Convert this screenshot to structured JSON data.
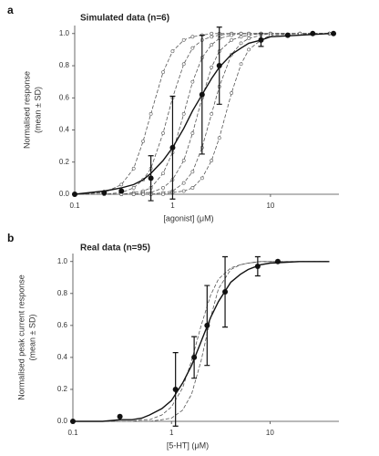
{
  "chart_data": [
    {
      "type": "line",
      "panel": "a",
      "title": "Simulated data (n=6)",
      "x_label": "[agonist] (μM)",
      "y_label": [
        "Normalised response",
        "(mean ± SD)"
      ],
      "xscale": "log",
      "xlim": [
        0.1,
        50
      ],
      "xticks": [
        0.1,
        1,
        10
      ],
      "ylim": [
        0,
        1.05
      ],
      "yticks": [
        {
          "value": 0,
          "label": "0.0"
        },
        0.2,
        0.4,
        0.6,
        0.8,
        {
          "value": 1,
          "label": "1.0"
        }
      ],
      "x": [
        0.1,
        0.2,
        0.3,
        0.4,
        0.5,
        0.6,
        0.8,
        1,
        1.3,
        1.6,
        2,
        2.5,
        3,
        4,
        5,
        6,
        8,
        10,
        20,
        40
      ],
      "series": [
        {
          "color": "#555555",
          "dashed": true,
          "markers": true,
          "values": [
            0,
            0.01,
            0.06,
            0.16,
            0.33,
            0.5,
            0.76,
            0.89,
            0.96,
            0.98,
            0.99,
            1,
            1,
            1,
            1,
            1,
            1,
            1,
            1,
            1
          ]
        },
        {
          "color": "#555555",
          "dashed": true,
          "markers": true,
          "values": [
            0,
            0,
            0.01,
            0.04,
            0.09,
            0.16,
            0.38,
            0.6,
            0.81,
            0.91,
            0.96,
            0.98,
            0.99,
            1,
            1,
            1,
            1,
            1,
            1,
            1
          ]
        },
        {
          "color": "#555555",
          "dashed": true,
          "markers": true,
          "values": [
            0,
            0,
            0,
            0.01,
            0.02,
            0.04,
            0.13,
            0.26,
            0.5,
            0.7,
            0.85,
            0.93,
            0.97,
            0.99,
            1,
            1,
            1,
            1,
            1,
            1
          ]
        },
        {
          "color": "#555555",
          "dashed": true,
          "markers": true,
          "values": [
            0,
            0,
            0,
            0,
            0.01,
            0.01,
            0.04,
            0.09,
            0.21,
            0.38,
            0.6,
            0.79,
            0.89,
            0.96,
            0.98,
            0.99,
            1,
            1,
            1,
            1
          ]
        },
        {
          "color": "#555555",
          "dashed": true,
          "markers": true,
          "values": [
            0,
            0,
            0,
            0,
            0,
            0,
            0.01,
            0.02,
            0.07,
            0.14,
            0.29,
            0.5,
            0.67,
            0.87,
            0.94,
            0.97,
            0.99,
            1,
            1,
            1
          ]
        },
        {
          "color": "#555555",
          "dashed": true,
          "markers": true,
          "values": [
            0,
            0,
            0,
            0,
            0,
            0,
            0,
            0.01,
            0.02,
            0.04,
            0.1,
            0.21,
            0.35,
            0.63,
            0.81,
            0.9,
            0.96,
            0.99,
            1,
            1
          ]
        },
        {
          "color": "#111111",
          "dashed": false,
          "markers": false,
          "values": [
            0,
            0.02,
            0.04,
            0.06,
            0.09,
            0.13,
            0.21,
            0.29,
            0.41,
            0.52,
            0.62,
            0.72,
            0.79,
            0.87,
            0.91,
            0.94,
            0.96,
            0.98,
            0.99,
            1
          ]
        }
      ],
      "points": {
        "color": "#111111",
        "x": [
          0.1,
          0.2,
          0.3,
          0.6,
          1,
          2,
          3,
          8,
          15,
          27,
          44
        ],
        "values": [
          0,
          0.01,
          0.02,
          0.1,
          0.29,
          0.62,
          0.8,
          0.96,
          0.99,
          1,
          1
        ],
        "errors": [
          null,
          null,
          null,
          0.14,
          0.32,
          0.37,
          0.24,
          0.04,
          null,
          null,
          null
        ]
      }
    },
    {
      "type": "line",
      "panel": "b",
      "title": "Real data (n=95)",
      "x_label": "[5-HT] (μM)",
      "y_label": [
        "Normalised peak current response",
        "(mean ± SD)"
      ],
      "xscale": "log",
      "xlim": [
        0.1,
        50
      ],
      "xticks": [
        0.1,
        1,
        10
      ],
      "ylim": [
        0,
        1.05
      ],
      "yticks": [
        {
          "value": 0,
          "label": "0.0"
        },
        0.2,
        0.4,
        0.6,
        0.8,
        {
          "value": 1,
          "label": "1.0"
        }
      ],
      "x": [
        0.1,
        0.2,
        0.3,
        0.4,
        0.5,
        0.6,
        0.8,
        1,
        1.3,
        1.6,
        2,
        2.5,
        3,
        4,
        5,
        6,
        8,
        10,
        20,
        40
      ],
      "series": [
        {
          "color": "#555555",
          "dashed": true,
          "markers": false,
          "values": [
            0,
            0,
            0,
            0,
            0.01,
            0.01,
            0.04,
            0.09,
            0.21,
            0.38,
            0.6,
            0.79,
            0.89,
            0.96,
            0.98,
            0.99,
            1,
            1,
            1,
            1
          ]
        },
        {
          "color": "#555555",
          "dashed": true,
          "markers": false,
          "values": [
            0,
            0,
            0,
            0,
            0,
            0,
            0.01,
            0.02,
            0.07,
            0.17,
            0.38,
            0.65,
            0.83,
            0.95,
            0.98,
            0.99,
            1,
            1,
            1,
            1
          ]
        },
        {
          "color": "#111111",
          "dashed": false,
          "markers": false,
          "values": [
            0,
            0,
            0.01,
            0.01,
            0.02,
            0.04,
            0.08,
            0.13,
            0.24,
            0.35,
            0.5,
            0.65,
            0.75,
            0.87,
            0.92,
            0.95,
            0.98,
            0.99,
            1,
            1
          ]
        }
      ],
      "points": {
        "color": "#111111",
        "x": [
          0.1,
          0.3,
          1.1,
          1.7,
          2.3,
          3.5,
          7.5,
          12
        ],
        "values": [
          0,
          0.03,
          0.2,
          0.4,
          0.6,
          0.81,
          0.97,
          1
        ],
        "errors": [
          null,
          null,
          0.23,
          0.13,
          0.25,
          0.22,
          0.06,
          null
        ]
      }
    }
  ]
}
